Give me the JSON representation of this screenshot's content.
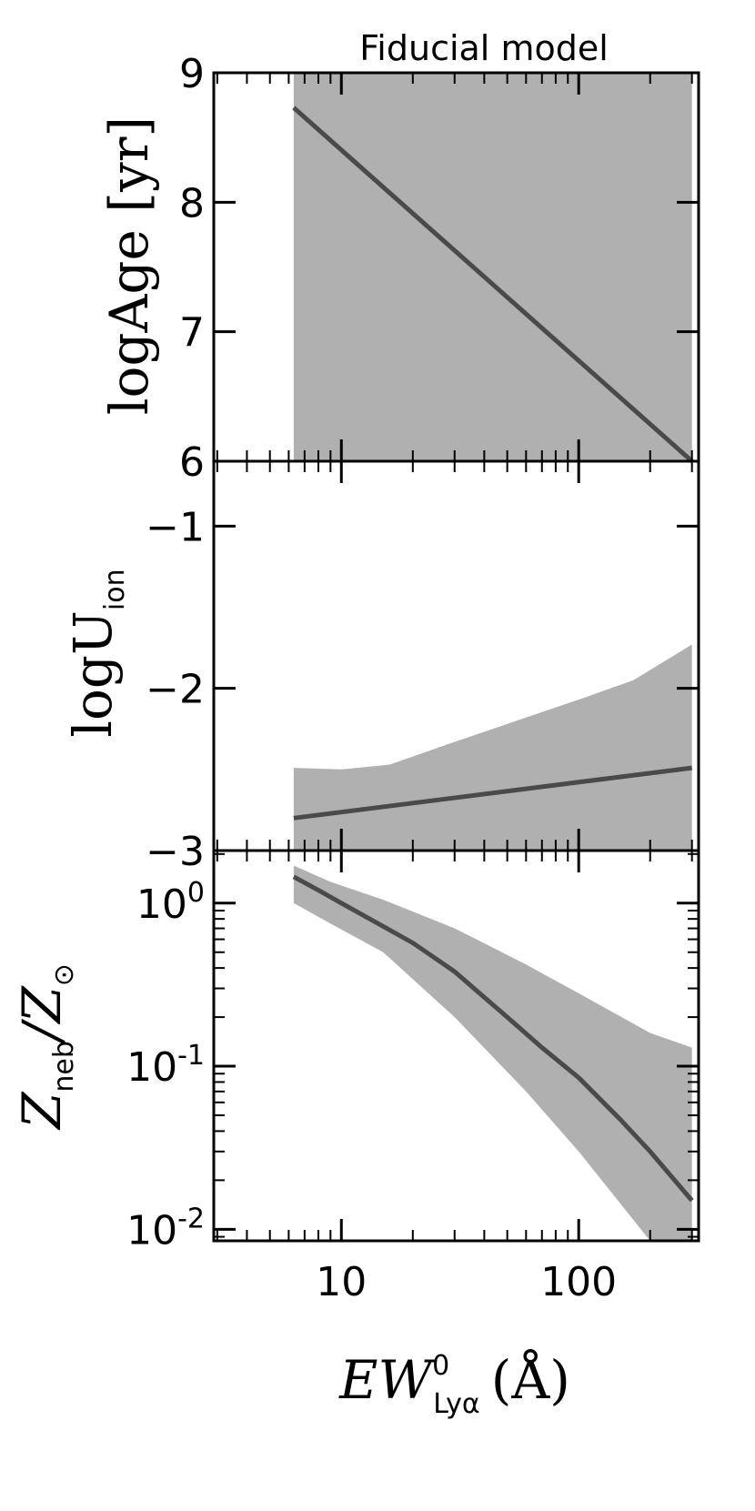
{
  "chart_data": {
    "type": "area",
    "title": "Fiducial model",
    "shared_x": {
      "label_main": "EW",
      "label_sup": "0",
      "label_sub": "Lyα",
      "label_unit": "(Å)",
      "scale": "log",
      "lim": [
        2.9,
        320
      ],
      "tick_labels": [
        "10",
        "100"
      ],
      "ticks": [
        10,
        100
      ]
    },
    "panels": [
      {
        "id": "age",
        "ylabel_main": "logAge",
        "ylabel_unit": "[yr]",
        "yscale": "linear",
        "ylim": [
          6,
          9
        ],
        "yticks": [
          6,
          7,
          8,
          9
        ],
        "ytick_labels": [
          "6",
          "7",
          "8",
          "9"
        ],
        "band_color": "#b0b0b0",
        "line_color": "#4a4a4a",
        "band": {
          "x": [
            6.3,
            300
          ],
          "lower": [
            6.0,
            6.0
          ],
          "upper": [
            9.0,
            9.0
          ]
        },
        "series": [
          {
            "x": [
              6.3,
              300
            ],
            "y": [
              8.73,
              6.0
            ]
          }
        ]
      },
      {
        "id": "uion",
        "ylabel_main": "logU",
        "ylabel_sub": "ion",
        "yscale": "linear",
        "ylim": [
          -3.0,
          -0.6
        ],
        "yticks": [
          -3,
          -2,
          -1
        ],
        "ytick_labels": [
          "−3",
          "−2",
          "−1"
        ],
        "band_color": "#b0b0b0",
        "line_color": "#4a4a4a",
        "band": {
          "x": [
            6.3,
            10,
            16,
            30,
            60,
            100,
            170,
            300
          ],
          "lower": [
            -3.0,
            -3.0,
            -3.0,
            -3.0,
            -3.0,
            -3.0,
            -3.0,
            -3.0
          ],
          "upper": [
            -2.49,
            -2.5,
            -2.47,
            -2.33,
            -2.18,
            -2.07,
            -1.95,
            -1.73
          ]
        },
        "series": [
          {
            "x": [
              6.3,
              300
            ],
            "y": [
              -2.8,
              -2.49
            ]
          }
        ]
      },
      {
        "id": "zneb",
        "ylabel_main": "Z",
        "ylabel_sub": "neb",
        "ylabel_rest": "/Z",
        "ylabel_sym": "⊙",
        "yscale": "log",
        "ylim": [
          0.0085,
          2.1
        ],
        "yticks": [
          0.01,
          0.1,
          1
        ],
        "ytick_labels": [
          {
            "base": "10",
            "exp": "-2"
          },
          {
            "base": "10",
            "exp": "-1"
          },
          {
            "base": "10",
            "exp": "0"
          }
        ],
        "band_color": "#b0b0b0",
        "line_color": "#4a4a4a",
        "band": {
          "x": [
            6.3,
            9,
            15,
            30,
            60,
            100,
            200,
            300
          ],
          "lower": [
            1.0,
            0.75,
            0.5,
            0.2,
            0.07,
            0.03,
            0.0085,
            0.0085
          ],
          "upper": [
            1.7,
            1.35,
            1.05,
            0.7,
            0.42,
            0.28,
            0.16,
            0.13
          ]
        },
        "series": [
          {
            "x": [
              6.3,
              8,
              10,
              15,
              20,
              30,
              50,
              70,
              100,
              150,
              200,
              300
            ],
            "y": [
              1.45,
              1.2,
              1.0,
              0.72,
              0.57,
              0.38,
              0.2,
              0.13,
              0.085,
              0.047,
              0.03,
              0.015
            ]
          }
        ]
      }
    ]
  }
}
